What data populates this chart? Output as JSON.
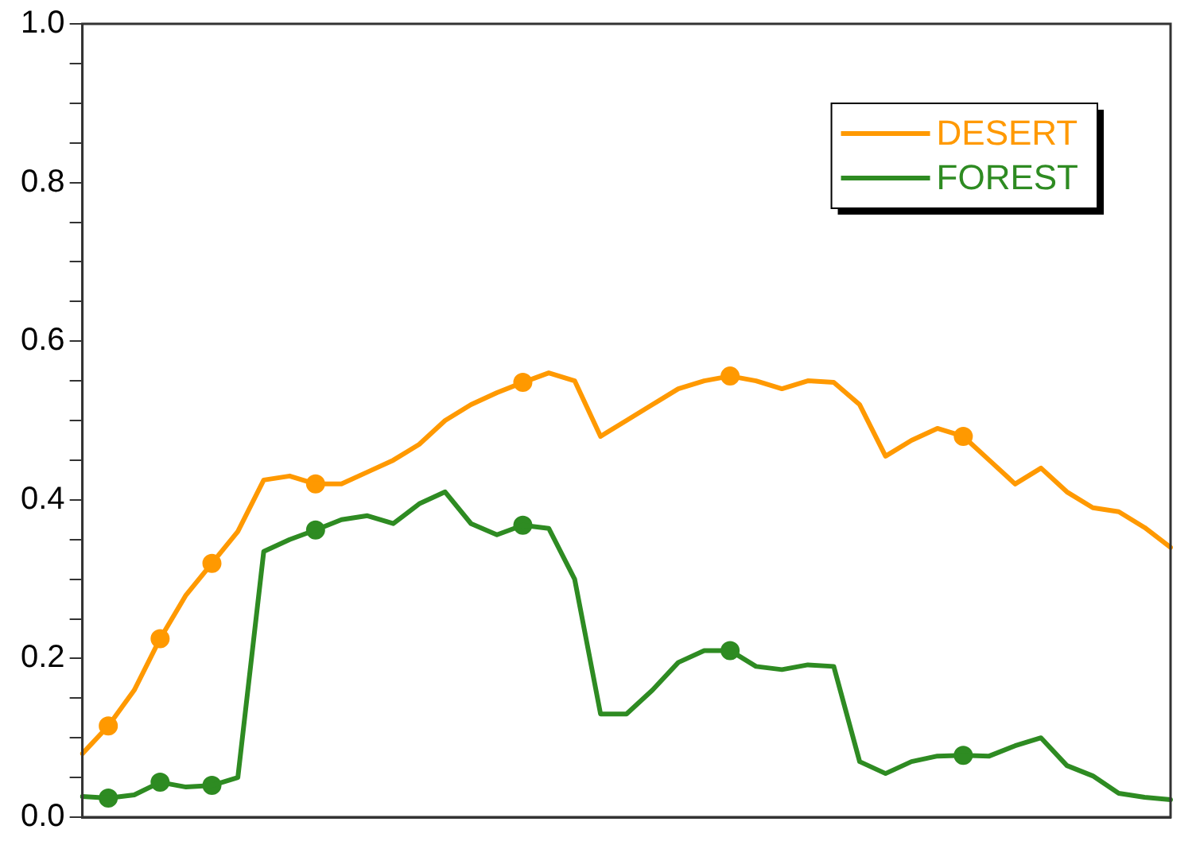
{
  "chart_data": {
    "type": "line",
    "legend": "top right",
    "grid": false,
    "line_style": "solid",
    "tick_labels": "y",
    "categories": [
      null,
      null,
      null,
      null,
      null,
      null,
      null,
      null,
      null,
      null,
      null,
      null,
      null,
      null,
      null,
      null,
      null,
      null,
      null,
      null,
      null,
      null,
      null,
      null,
      null,
      null,
      null,
      null,
      null,
      null,
      null,
      null,
      null,
      null,
      null,
      null,
      null,
      null,
      null,
      null,
      null,
      null,
      null
    ],
    "ylim": [
      0,
      1
    ],
    "yticks": [
      {
        "value": 0,
        "label": "0.0"
      },
      {
        "value": 0.05,
        "label": null
      },
      {
        "value": 0.1,
        "label": null
      },
      {
        "value": 0.15,
        "label": null
      },
      {
        "value": 0.2,
        "label": "0.2"
      },
      {
        "value": 0.25,
        "label": null
      },
      {
        "value": 0.3,
        "label": null
      },
      {
        "value": 0.35,
        "label": null
      },
      {
        "value": 0.4,
        "label": "0.4"
      },
      {
        "value": 0.45,
        "label": null
      },
      {
        "value": 0.5,
        "label": null
      },
      {
        "value": 0.55,
        "label": null
      },
      {
        "value": 0.6,
        "label": "0.6"
      },
      {
        "value": 0.65,
        "label": null
      },
      {
        "value": 0.7,
        "label": null
      },
      {
        "value": 0.75,
        "label": null
      },
      {
        "value": 0.8,
        "label": "0.8"
      },
      {
        "value": 0.85,
        "label": null
      },
      {
        "value": 0.9,
        "label": null
      },
      {
        "value": 0.95,
        "label": null
      },
      {
        "value": 1,
        "label": "1.0"
      }
    ],
    "series": [
      {
        "name": "DESERT",
        "color": "#ff9900",
        "values": [
          0.08,
          0.115,
          0.16,
          0.225,
          0.28,
          0.32,
          0.36,
          0.425,
          0.43,
          0.42,
          0.42,
          0.435,
          0.45,
          0.47,
          0.5,
          0.52,
          0.535,
          0.548,
          0.56,
          0.55,
          0.48,
          0.5,
          0.52,
          0.54,
          0.55,
          0.556,
          0.55,
          0.54,
          0.55,
          0.548,
          0.52,
          0.455,
          0.475,
          0.49,
          0.48,
          0.45,
          0.42,
          0.44,
          0.41,
          0.39,
          0.385,
          0.365,
          0.34
        ]
      },
      {
        "name": "FOREST",
        "color": "#2e8b22",
        "values": [
          0.026,
          0.024,
          0.028,
          0.044,
          0.038,
          0.04,
          0.05,
          0.335,
          0.35,
          0.362,
          0.375,
          0.38,
          0.37,
          0.395,
          0.41,
          0.37,
          0.356,
          0.368,
          0.364,
          0.3,
          0.13,
          0.13,
          0.16,
          0.195,
          0.21,
          0.21,
          0.19,
          0.186,
          0.192,
          0.19,
          0.07,
          0.055,
          0.07,
          0.077,
          0.078,
          0.077,
          0.09,
          0.1,
          0.065,
          0.052,
          0.03,
          0.025,
          0.022
        ]
      },
      {
        "type": "scatter",
        "color": "#ff9900",
        "values": [
          null,
          0.115,
          null,
          0.225,
          null,
          0.32,
          null,
          null,
          null,
          0.42,
          null,
          null,
          null,
          null,
          null,
          null,
          null,
          0.548,
          null,
          null,
          null,
          null,
          null,
          null,
          null,
          0.556,
          null,
          null,
          null,
          null,
          null,
          null,
          null,
          null,
          0.48,
          null,
          null,
          null,
          null,
          null,
          null,
          null,
          null
        ]
      },
      {
        "type": "scatter",
        "color": "#2e8b22",
        "values": [
          null,
          0.024,
          null,
          0.044,
          null,
          0.04,
          null,
          null,
          null,
          0.362,
          null,
          null,
          null,
          null,
          null,
          null,
          null,
          0.368,
          null,
          null,
          null,
          null,
          null,
          null,
          null,
          0.21,
          null,
          null,
          null,
          null,
          null,
          null,
          null,
          null,
          0.078,
          null,
          null,
          null,
          null,
          null,
          null,
          null,
          null
        ]
      }
    ]
  }
}
